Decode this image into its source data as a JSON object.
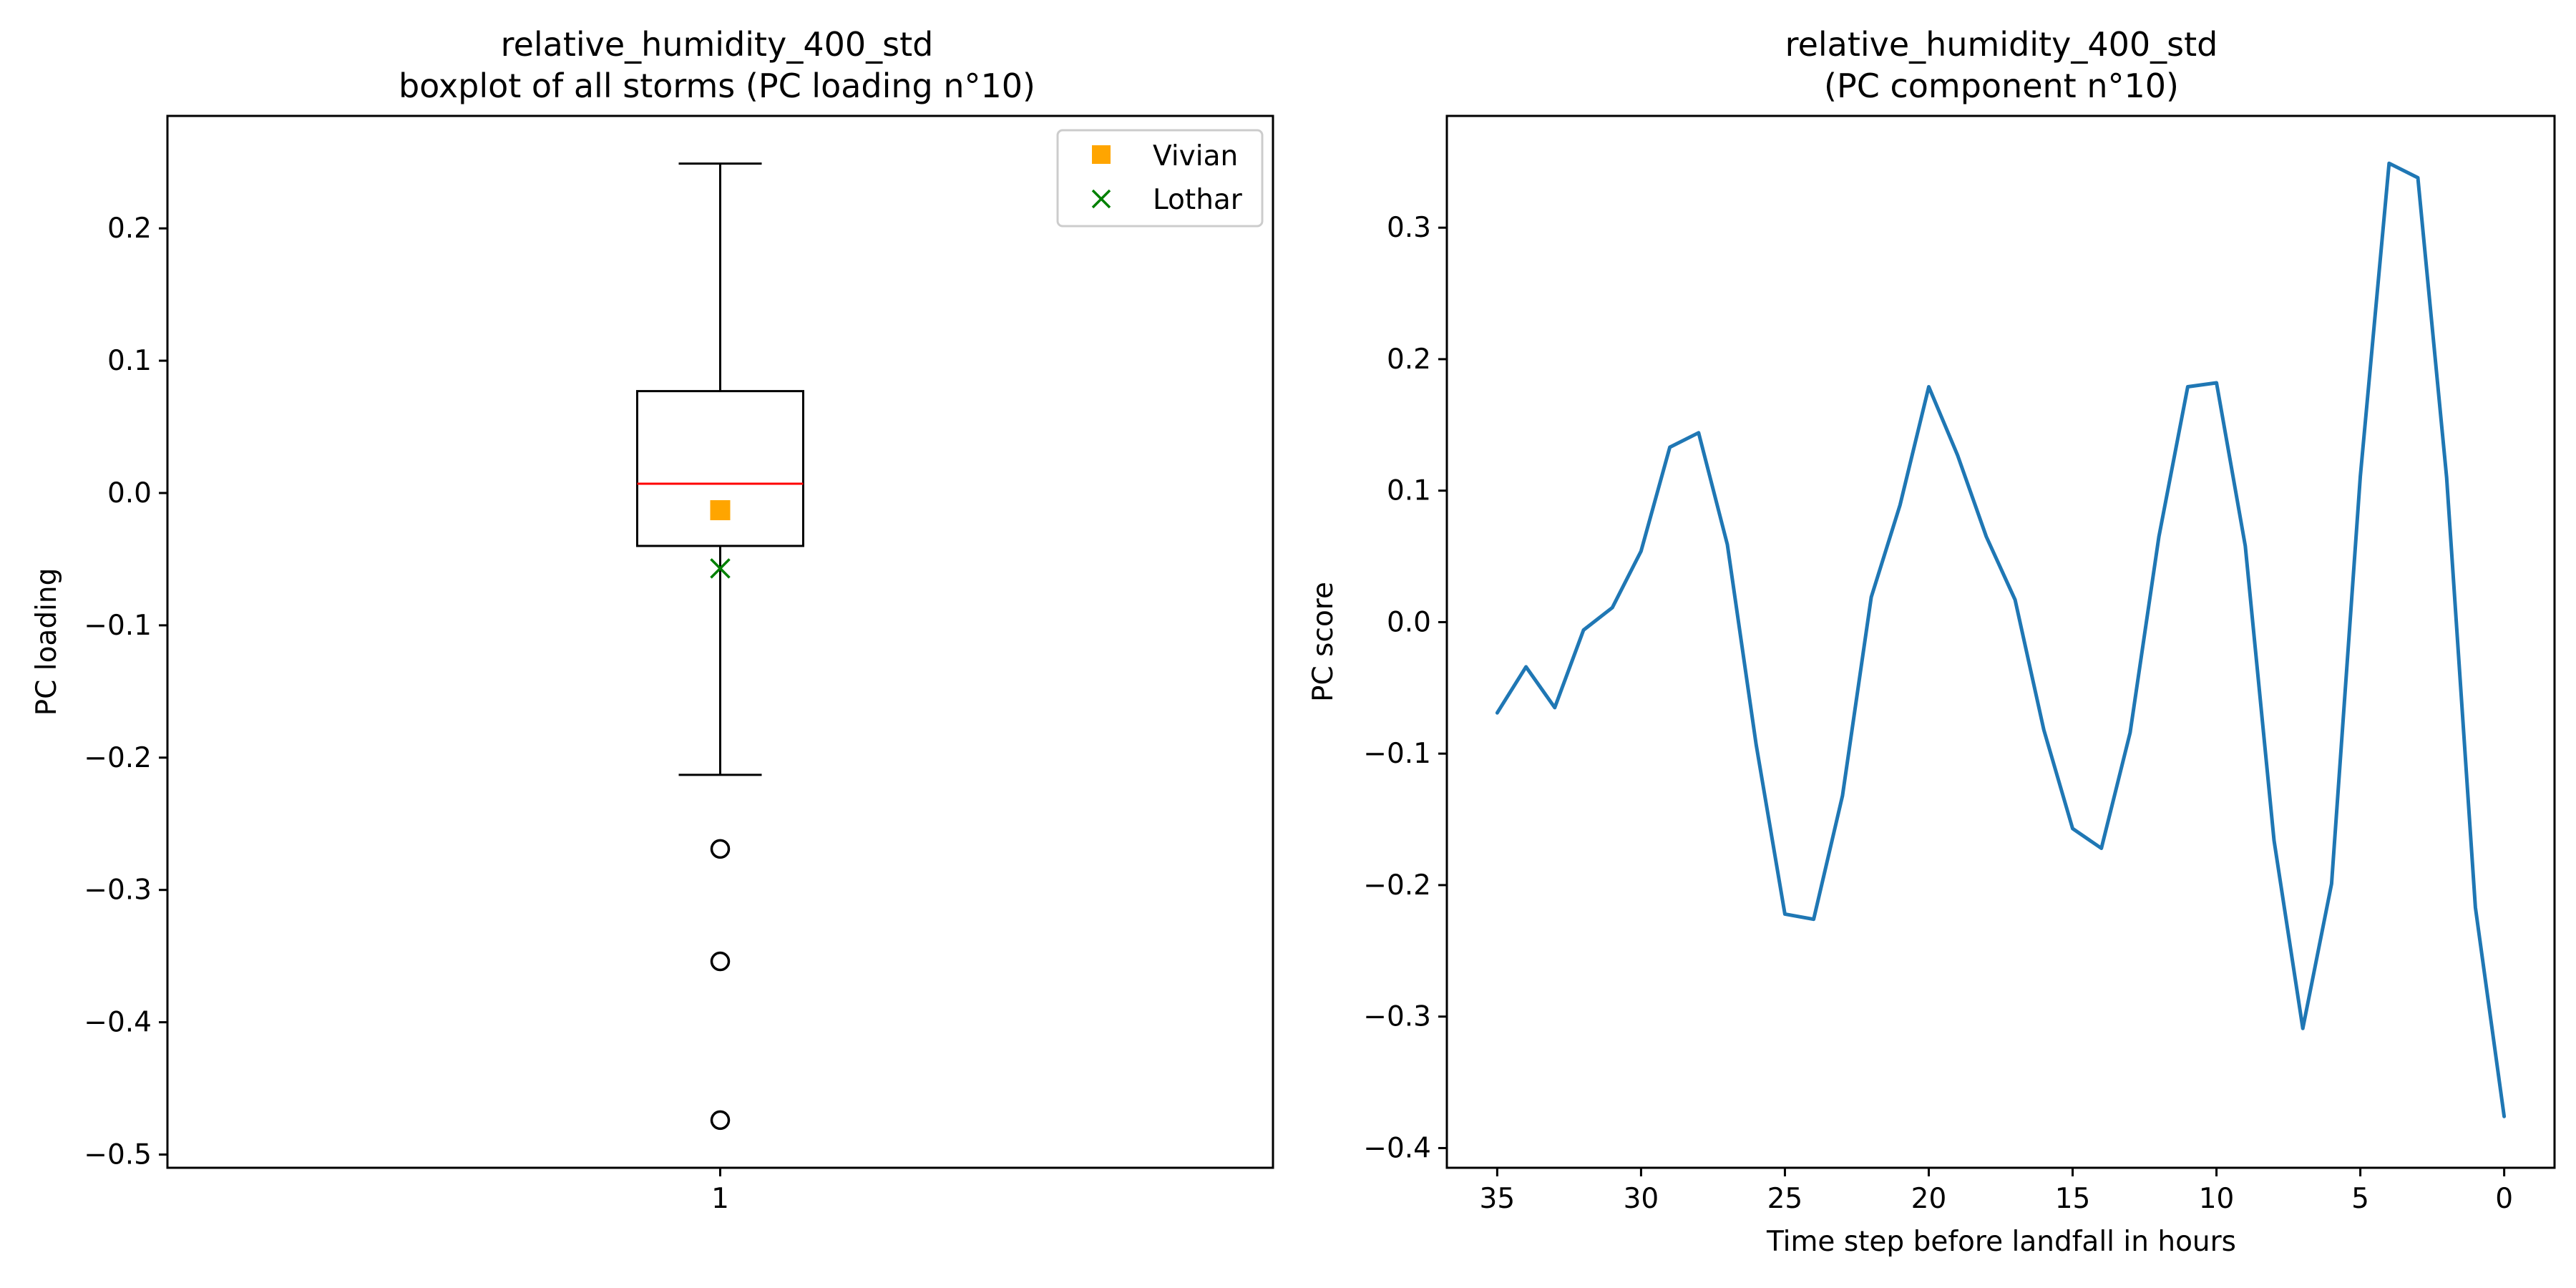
{
  "chart_data": [
    {
      "type": "boxplot",
      "title_line1": "relative_humidity_400_std",
      "title_line2": "boxplot of all storms (PC loading n°10)",
      "xlabel": "",
      "ylabel": "PC loading",
      "x_tick_labels": [
        "1"
      ],
      "ylim": [
        -0.51,
        0.285
      ],
      "yticks": [
        0.2,
        0.1,
        0.0,
        -0.1,
        -0.2,
        -0.3,
        -0.4,
        -0.5
      ],
      "ytick_labels": [
        "0.2",
        "0.1",
        "0.0",
        "−0.1",
        "−0.2",
        "−0.3",
        "−0.4",
        "−0.5"
      ],
      "box": {
        "whisker_high": 0.249,
        "q3": 0.077,
        "median": 0.007,
        "q1": -0.04,
        "whisker_low": -0.213,
        "outliers": [
          -0.269,
          -0.354,
          -0.474
        ]
      },
      "markers": [
        {
          "name": "Vivian",
          "value": -0.013,
          "marker": "square",
          "color": "#ffa500"
        },
        {
          "name": "Lothar",
          "value": -0.057,
          "marker": "x",
          "color": "#008000"
        }
      ],
      "legend_position": "top-right",
      "colors": {
        "median": "#ff0000",
        "box": "#000000"
      }
    },
    {
      "type": "line",
      "title_line1": "relative_humidity_400_std",
      "title_line2": "(PC component n°10)",
      "xlabel": "Time step before landfall in hours",
      "ylabel": "PC score",
      "xlim": [
        36.75,
        -1.75
      ],
      "ylim": [
        -0.415,
        0.385
      ],
      "xticks": [
        35,
        30,
        25,
        20,
        15,
        10,
        5,
        0
      ],
      "xtick_labels": [
        "35",
        "30",
        "25",
        "20",
        "15",
        "10",
        "5",
        "0"
      ],
      "yticks": [
        0.3,
        0.2,
        0.1,
        0.0,
        -0.1,
        -0.2,
        -0.3,
        -0.4
      ],
      "ytick_labels": [
        "0.3",
        "0.2",
        "0.1",
        "0.0",
        "−0.1",
        "−0.2",
        "−0.3",
        "−0.4"
      ],
      "series": [
        {
          "color": "#1f77b4",
          "x": [
            35,
            34,
            33,
            32,
            31,
            30,
            29,
            28,
            27,
            26,
            25,
            24,
            23,
            22,
            21,
            20,
            19,
            18,
            17,
            16,
            15,
            14,
            13,
            12,
            11,
            10,
            9,
            8,
            7,
            6,
            5,
            4,
            3,
            2,
            1,
            0
          ],
          "y": [
            -0.069,
            -0.034,
            -0.065,
            -0.006,
            0.011,
            0.054,
            0.133,
            0.144,
            0.059,
            -0.093,
            -0.222,
            -0.226,
            -0.132,
            0.019,
            0.089,
            0.179,
            0.127,
            0.065,
            0.017,
            -0.082,
            -0.157,
            -0.172,
            -0.084,
            0.065,
            0.179,
            0.182,
            0.058,
            -0.166,
            -0.309,
            -0.199,
            0.111,
            0.349,
            0.338,
            0.11,
            -0.217,
            -0.376
          ]
        }
      ]
    }
  ]
}
